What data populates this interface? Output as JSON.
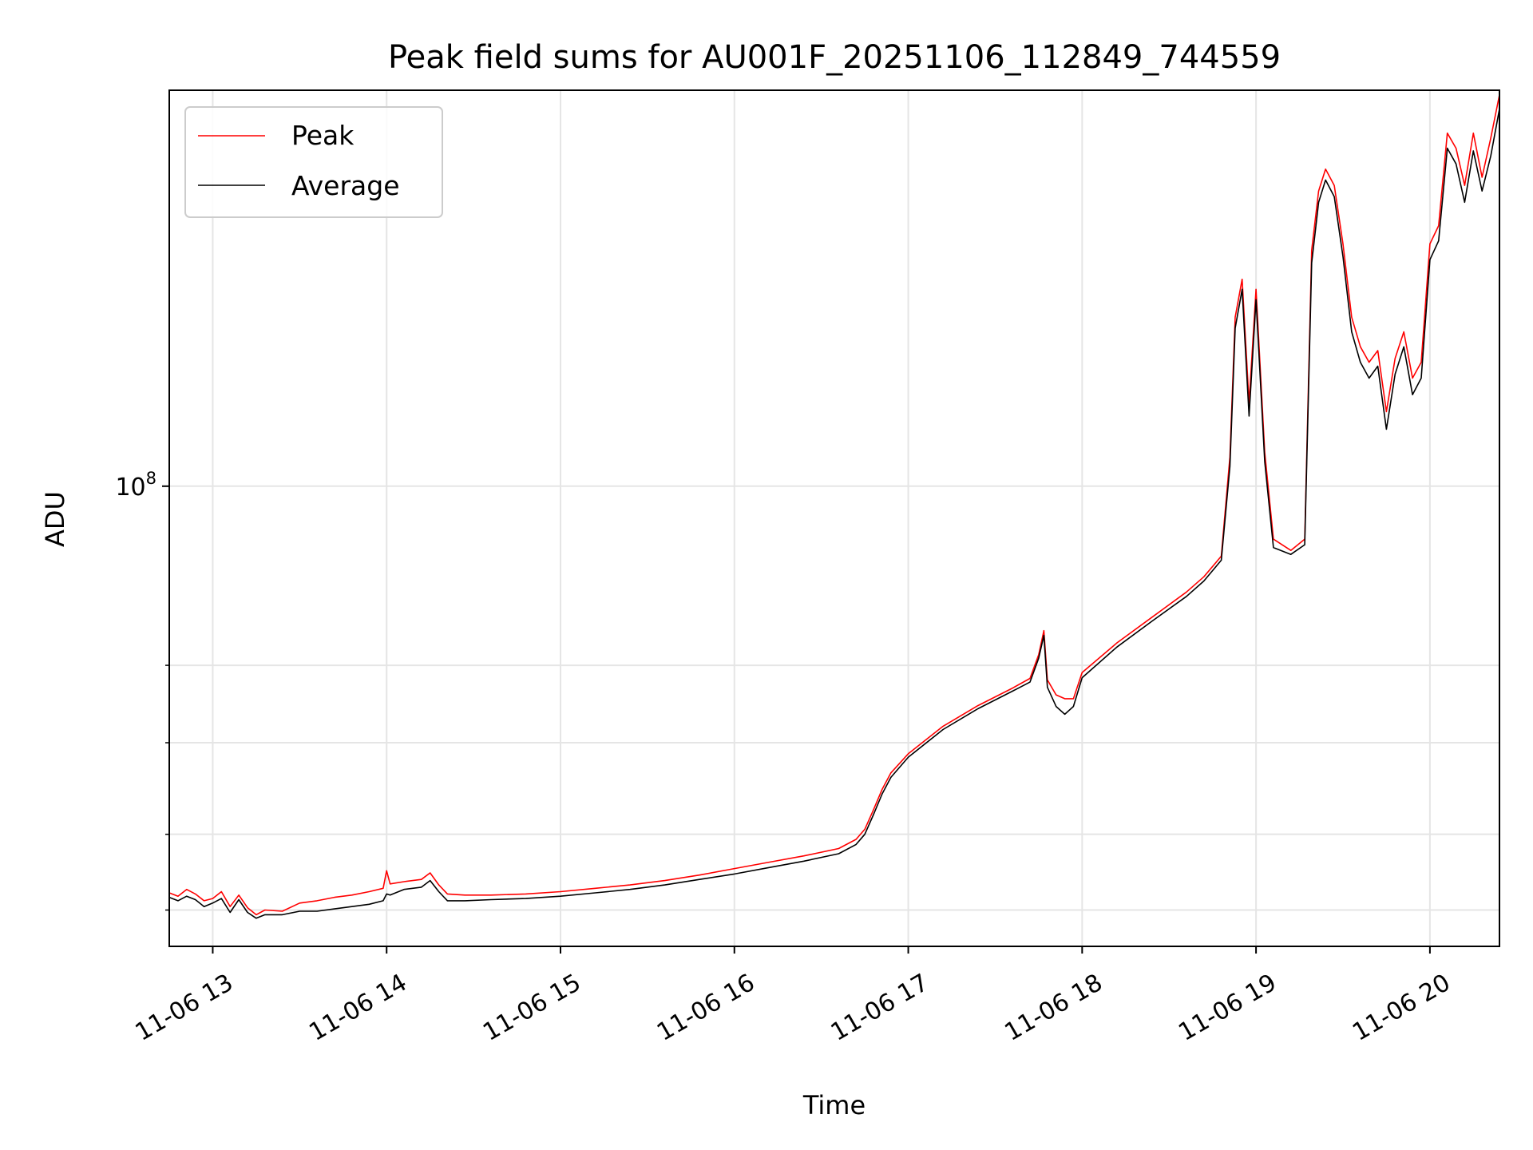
{
  "chart_data": {
    "type": "line",
    "title": "Peak field sums for AU001F_20251106_112849_744559",
    "xlabel": "Time",
    "ylabel": "ADU",
    "yscale": "log",
    "xlim": [
      12.75,
      20.4
    ],
    "ylim": [
      40000000,
      220000000
    ],
    "x_ticks": [
      {
        "value": 13,
        "label": "11-06 13"
      },
      {
        "value": 14,
        "label": "11-06 14"
      },
      {
        "value": 15,
        "label": "11-06 15"
      },
      {
        "value": 16,
        "label": "11-06 16"
      },
      {
        "value": 17,
        "label": "11-06 17"
      },
      {
        "value": 18,
        "label": "11-06 18"
      },
      {
        "value": 19,
        "label": "11-06 19"
      },
      {
        "value": 20,
        "label": "11-06 20"
      }
    ],
    "y_ticks": [
      {
        "value": 100000000,
        "label_base": "10",
        "label_exp": "8"
      }
    ],
    "y_minor_ticks": [
      43000000,
      50000000,
      60000000,
      70000000
    ],
    "grid": true,
    "legend_position": "upper-left",
    "series": [
      {
        "name": "Peak",
        "color": "#ff0000",
        "x": [
          12.75,
          12.8,
          12.85,
          12.9,
          12.95,
          13.0,
          13.05,
          13.1,
          13.15,
          13.2,
          13.25,
          13.3,
          13.4,
          13.5,
          13.6,
          13.7,
          13.8,
          13.9,
          13.98,
          14.0,
          14.02,
          14.1,
          14.2,
          14.25,
          14.3,
          14.35,
          14.45,
          14.6,
          14.8,
          15.0,
          15.2,
          15.4,
          15.6,
          15.8,
          16.0,
          16.2,
          16.4,
          16.6,
          16.7,
          16.75,
          16.8,
          16.85,
          16.9,
          17.0,
          17.2,
          17.4,
          17.6,
          17.7,
          17.75,
          17.78,
          17.8,
          17.85,
          17.9,
          17.95,
          18.0,
          18.2,
          18.4,
          18.6,
          18.7,
          18.8,
          18.85,
          18.88,
          18.92,
          18.96,
          19.0,
          19.05,
          19.1,
          19.2,
          19.28,
          19.32,
          19.36,
          19.4,
          19.45,
          19.5,
          19.55,
          19.6,
          19.65,
          19.7,
          19.75,
          19.8,
          19.85,
          19.9,
          19.95,
          20.0,
          20.05,
          20.1,
          20.15,
          20.2,
          20.25,
          20.3,
          20.35,
          20.4
        ],
        "y": [
          44500000,
          44200000,
          44800000,
          44400000,
          43800000,
          44000000,
          44600000,
          43300000,
          44300000,
          43200000,
          42600000,
          43000000,
          42900000,
          43600000,
          43800000,
          44100000,
          44300000,
          44600000,
          44900000,
          46500000,
          45300000,
          45500000,
          45700000,
          46300000,
          45200000,
          44400000,
          44300000,
          44300000,
          44400000,
          44600000,
          44900000,
          45200000,
          45600000,
          46100000,
          46700000,
          47300000,
          47900000,
          48600000,
          49500000,
          50500000,
          52500000,
          54700000,
          56500000,
          58700000,
          62000000,
          64600000,
          66900000,
          68200000,
          71500000,
          75000000,
          68000000,
          66000000,
          65500000,
          65500000,
          69000000,
          73200000,
          77000000,
          81000000,
          83500000,
          87000000,
          106000000,
          140000000,
          151000000,
          118000000,
          148000000,
          107000000,
          90000000,
          88000000,
          90000000,
          160000000,
          180000000,
          188000000,
          182000000,
          162000000,
          140000000,
          132000000,
          128000000,
          131000000,
          116000000,
          129000000,
          136000000,
          124000000,
          128000000,
          162000000,
          168000000,
          202000000,
          196000000,
          182000000,
          202000000,
          185000000,
          200000000,
          218000000
        ]
      },
      {
        "name": "Average",
        "color": "#000000",
        "x": [
          12.75,
          12.8,
          12.85,
          12.9,
          12.95,
          13.0,
          13.05,
          13.1,
          13.15,
          13.2,
          13.25,
          13.3,
          13.4,
          13.5,
          13.6,
          13.7,
          13.8,
          13.9,
          13.98,
          14.0,
          14.02,
          14.1,
          14.2,
          14.25,
          14.3,
          14.35,
          14.45,
          14.6,
          14.8,
          15.0,
          15.2,
          15.4,
          15.6,
          15.8,
          16.0,
          16.2,
          16.4,
          16.6,
          16.7,
          16.75,
          16.8,
          16.85,
          16.9,
          17.0,
          17.2,
          17.4,
          17.6,
          17.7,
          17.75,
          17.78,
          17.8,
          17.85,
          17.9,
          17.95,
          18.0,
          18.2,
          18.4,
          18.6,
          18.7,
          18.8,
          18.85,
          18.88,
          18.92,
          18.96,
          19.0,
          19.05,
          19.1,
          19.2,
          19.28,
          19.32,
          19.36,
          19.4,
          19.45,
          19.5,
          19.55,
          19.6,
          19.65,
          19.7,
          19.75,
          19.8,
          19.85,
          19.9,
          19.95,
          20.0,
          20.05,
          20.1,
          20.15,
          20.2,
          20.25,
          20.3,
          20.35,
          20.4
        ],
        "y": [
          44100000,
          43800000,
          44200000,
          43900000,
          43300000,
          43600000,
          44000000,
          42800000,
          43900000,
          42800000,
          42300000,
          42600000,
          42600000,
          42900000,
          42900000,
          43100000,
          43300000,
          43500000,
          43800000,
          44400000,
          44300000,
          44800000,
          45000000,
          45600000,
          44600000,
          43800000,
          43800000,
          43900000,
          44000000,
          44200000,
          44500000,
          44800000,
          45200000,
          45700000,
          46200000,
          46800000,
          47400000,
          48100000,
          49000000,
          50000000,
          52000000,
          54200000,
          56000000,
          58300000,
          61600000,
          64200000,
          66500000,
          67700000,
          71000000,
          74300000,
          67000000,
          64500000,
          63500000,
          64500000,
          68300000,
          72600000,
          76400000,
          80300000,
          82800000,
          86300000,
          104000000,
          137000000,
          148000000,
          115000000,
          145000000,
          105000000,
          88500000,
          87300000,
          89000000,
          156000000,
          176000000,
          184000000,
          178000000,
          158000000,
          136000000,
          128000000,
          124000000,
          127000000,
          112000000,
          125000000,
          132000000,
          120000000,
          124000000,
          157000000,
          163000000,
          196000000,
          190000000,
          176000000,
          195000000,
          180000000,
          193000000,
          212000000
        ]
      }
    ]
  }
}
